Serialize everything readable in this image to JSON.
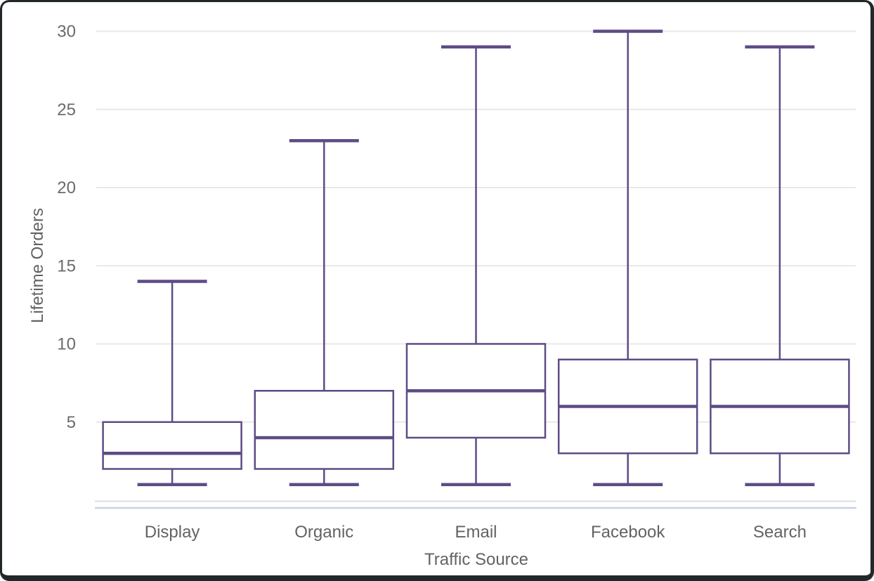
{
  "window": {
    "background": "#ffffff",
    "frame_color": "#22282a"
  },
  "chart_data": {
    "type": "box",
    "title": "",
    "xlabel": "Traffic Source",
    "ylabel": "Lifetime Orders",
    "categories": [
      "Display",
      "Organic",
      "Email",
      "Facebook",
      "Search"
    ],
    "series": [
      {
        "name": "Display",
        "min": 1,
        "q1": 2,
        "median": 3,
        "q3": 5,
        "max": 14
      },
      {
        "name": "Organic",
        "min": 1,
        "q1": 2,
        "median": 4,
        "q3": 7,
        "max": 23
      },
      {
        "name": "Email",
        "min": 1,
        "q1": 4,
        "median": 7,
        "q3": 10,
        "max": 29
      },
      {
        "name": "Facebook",
        "min": 1,
        "q1": 3,
        "median": 6,
        "q3": 9,
        "max": 30
      },
      {
        "name": "Search",
        "min": 1,
        "q1": 3,
        "median": 6,
        "q3": 9,
        "max": 29
      }
    ],
    "yticks": [
      5,
      10,
      15,
      20,
      25,
      30
    ],
    "ylim": [
      0,
      31
    ],
    "grid": true,
    "legend": "none",
    "orientation": "vertical",
    "colors": {
      "box_stroke": "#5e4c85",
      "box_fill": "#ffffff",
      "gridline": "#e8e8e8",
      "baseline": "#dedede",
      "accent_line": "#c7d2e6",
      "tick_label": "#6b6b6b",
      "category_label": "#636363"
    }
  }
}
